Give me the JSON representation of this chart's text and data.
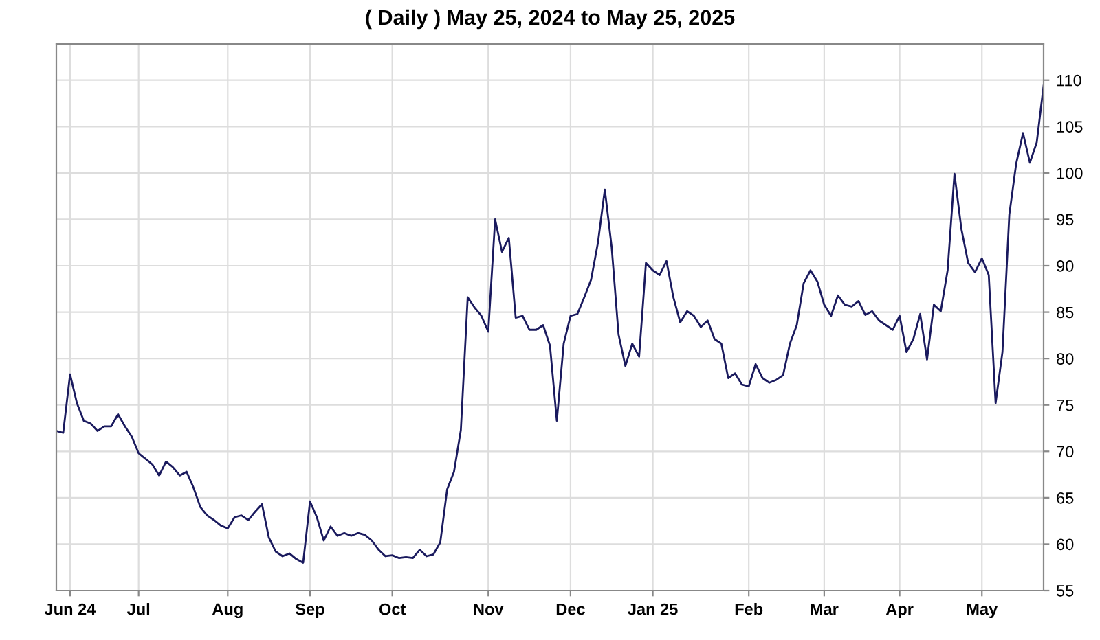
{
  "chart_data": {
    "type": "line",
    "title": "( Daily ) May 25, 2024 to May 25, 2025",
    "categories": [
      null,
      null,
      "Jun 24",
      null,
      null,
      null,
      null,
      null,
      null,
      null,
      null,
      null,
      "Jul",
      null,
      null,
      null,
      null,
      null,
      null,
      null,
      null,
      null,
      null,
      null,
      null,
      "Aug",
      null,
      null,
      null,
      null,
      null,
      null,
      null,
      null,
      null,
      null,
      null,
      "Sep",
      null,
      null,
      null,
      null,
      null,
      null,
      null,
      null,
      null,
      null,
      null,
      "Oct",
      null,
      null,
      null,
      null,
      null,
      null,
      null,
      null,
      null,
      null,
      null,
      null,
      null,
      "Nov",
      null,
      null,
      null,
      null,
      null,
      null,
      null,
      null,
      null,
      null,
      null,
      "Dec",
      null,
      null,
      null,
      null,
      null,
      null,
      null,
      null,
      null,
      null,
      null,
      "Jan 25",
      null,
      null,
      null,
      null,
      null,
      null,
      null,
      null,
      null,
      null,
      null,
      null,
      null,
      "Feb",
      null,
      null,
      null,
      null,
      null,
      null,
      null,
      null,
      null,
      null,
      "Mar",
      null,
      null,
      null,
      null,
      null,
      null,
      null,
      null,
      null,
      null,
      "Apr",
      null,
      null,
      null,
      null,
      null,
      null,
      null,
      null,
      null,
      null,
      null,
      "May",
      null,
      null,
      null,
      null,
      null,
      null,
      null,
      null,
      null
    ],
    "series": [
      {
        "color": "#1a1a5e",
        "values": [
          72.2,
          72.0,
          78.3,
          75.2,
          73.3,
          73.0,
          72.2,
          72.7,
          72.7,
          74.0,
          72.7,
          71.6,
          69.8,
          69.2,
          68.6,
          67.4,
          68.9,
          68.3,
          67.4,
          67.8,
          66.1,
          64.0,
          63.1,
          62.6,
          62.0,
          61.7,
          62.9,
          63.1,
          62.6,
          63.5,
          64.3,
          60.7,
          59.2,
          58.7,
          59.0,
          58.4,
          58.0,
          64.6,
          62.9,
          60.4,
          61.9,
          60.9,
          61.2,
          60.9,
          61.2,
          61.0,
          60.4,
          59.4,
          58.7,
          58.8,
          58.5,
          58.6,
          58.5,
          59.4,
          58.7,
          58.9,
          60.2,
          65.9,
          67.8,
          72.3,
          86.6,
          85.5,
          84.6,
          82.9,
          95.0,
          91.5,
          93.0,
          84.4,
          84.6,
          83.1,
          83.1,
          83.6,
          81.4,
          73.3,
          81.6,
          84.6,
          84.8,
          86.6,
          88.5,
          92.5,
          98.2,
          92.0,
          82.6,
          79.2,
          81.6,
          80.2,
          90.3,
          89.5,
          89.0,
          90.5,
          86.6,
          83.9,
          85.1,
          84.6,
          83.4,
          84.1,
          82.1,
          81.6,
          77.9,
          78.4,
          77.2,
          77.0,
          79.4,
          77.9,
          77.4,
          77.7,
          78.2,
          81.6,
          83.6,
          88.1,
          89.5,
          88.3,
          85.8,
          84.6,
          86.8,
          85.8,
          85.6,
          86.2,
          84.7,
          85.1,
          84.1,
          83.6,
          83.1,
          84.6,
          80.7,
          82.1,
          84.8,
          79.9,
          85.8,
          85.1,
          89.5,
          99.9,
          94.0,
          90.3,
          89.3,
          90.8,
          89.0,
          75.2,
          80.7,
          95.5,
          101.0,
          104.3,
          101.1,
          103.3,
          109.4
        ]
      }
    ],
    "ylim": [
      55,
      113.9
    ],
    "yticks": [
      55,
      60,
      65,
      70,
      75,
      80,
      85,
      90,
      95,
      100,
      105,
      110
    ],
    "grid": true,
    "legend": false,
    "marker": "none",
    "line_style": "solid"
  }
}
